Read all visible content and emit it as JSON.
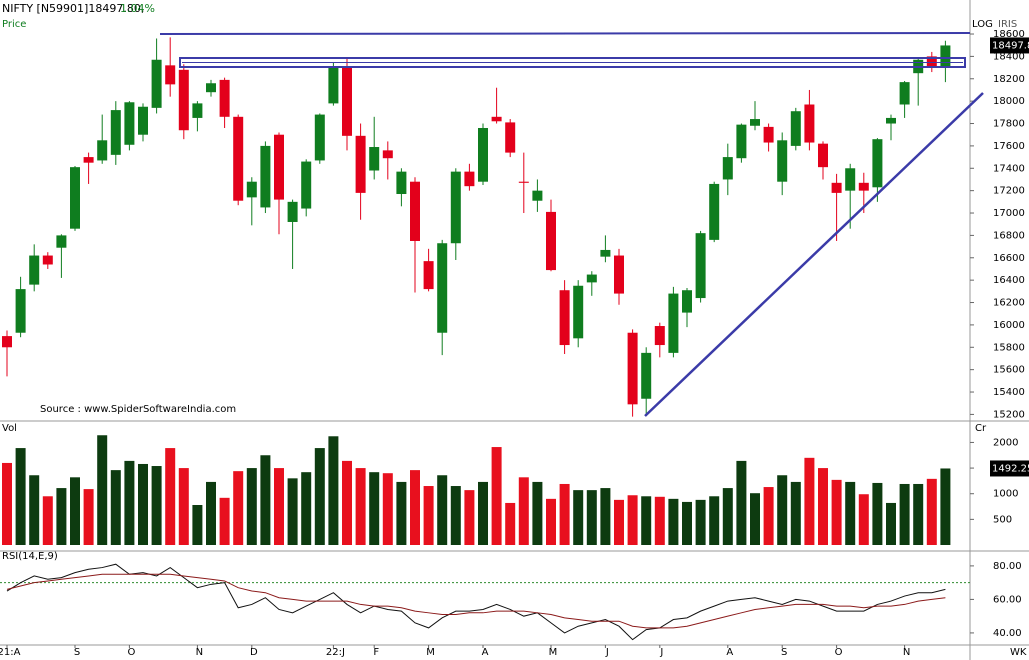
{
  "chart_data": [
    {
      "type": "candlestick",
      "title": "NIFTY [N59901]18497.80,",
      "change": "1.04%",
      "panel_label": "Price",
      "scale_labels": [
        "LOG",
        "IRIS"
      ],
      "source": "Source : www.SpiderSoftwareIndia.com",
      "up_color": "#0f7d1f",
      "down_color": "#e3001b",
      "open": [
        15900,
        15930,
        16360,
        16620,
        16690,
        16860,
        17500,
        17470,
        17520,
        17610,
        17700,
        17940,
        18320,
        18280,
        17850,
        18080,
        18190,
        17860,
        17140,
        17050,
        17700,
        16920,
        17040,
        17470,
        17980,
        18300,
        17690,
        17380,
        17560,
        17170,
        17280,
        16570,
        15930,
        16730,
        17370,
        17280,
        17860,
        17810,
        17280,
        17110,
        17010,
        16310,
        15880,
        16380,
        16610,
        16620,
        15930,
        15340,
        15990,
        15750,
        16110,
        16240,
        16760,
        17300,
        17490,
        17780,
        17770,
        17280,
        17600,
        17970,
        17620,
        17270,
        17200,
        17270,
        17230,
        17800,
        17970,
        18250,
        18400,
        18300
      ],
      "high": [
        15950,
        16430,
        16720,
        16650,
        16810,
        17420,
        17540,
        17880,
        18000,
        18000,
        17980,
        18560,
        18570,
        18330,
        18000,
        18190,
        18210,
        17880,
        17320,
        17640,
        17720,
        17120,
        17480,
        17890,
        18350,
        18390,
        17800,
        17860,
        17640,
        17400,
        17320,
        16680,
        16760,
        17400,
        17440,
        17800,
        18120,
        17840,
        17540,
        17300,
        17120,
        16400,
        16400,
        16480,
        16800,
        16680,
        15960,
        15800,
        16020,
        16340,
        16330,
        16840,
        17280,
        17620,
        17800,
        18000,
        17800,
        17720,
        17940,
        18100,
        17640,
        17350,
        17440,
        17360,
        17670,
        17880,
        18180,
        18380,
        18440,
        18540
      ],
      "low": [
        15540,
        15890,
        16300,
        16500,
        16420,
        16840,
        17260,
        17440,
        17430,
        17560,
        17640,
        17890,
        18040,
        17660,
        17730,
        18040,
        17760,
        17070,
        16890,
        17000,
        16810,
        16500,
        16970,
        17440,
        17960,
        17560,
        16940,
        17300,
        17300,
        17060,
        16290,
        16300,
        15730,
        16580,
        17200,
        17250,
        17800,
        17500,
        17000,
        17010,
        16480,
        15740,
        15800,
        16260,
        16560,
        16180,
        15180,
        15190,
        15710,
        15710,
        15980,
        16200,
        16740,
        17160,
        17450,
        17740,
        17550,
        17160,
        17560,
        17560,
        17300,
        16750,
        16860,
        17000,
        17100,
        17650,
        17850,
        17960,
        18260,
        18170
      ],
      "close": [
        15800,
        16320,
        16620,
        16540,
        16800,
        17410,
        17450,
        17650,
        17920,
        17990,
        17950,
        18370,
        18150,
        17740,
        17980,
        18160,
        17860,
        17110,
        17280,
        17600,
        17120,
        17100,
        17460,
        17880,
        18300,
        17690,
        17180,
        17590,
        17490,
        17370,
        16750,
        16320,
        16730,
        17370,
        17240,
        17760,
        17820,
        17540,
        17270,
        17200,
        16490,
        15820,
        16350,
        16450,
        16670,
        16280,
        15290,
        15750,
        15820,
        16280,
        16310,
        16820,
        17260,
        17500,
        17790,
        17840,
        17630,
        17650,
        17910,
        17630,
        17410,
        17180,
        17400,
        17200,
        17660,
        17850,
        18170,
        18370,
        18310,
        18497.8
      ],
      "ylim": [
        15150,
        18770
      ],
      "yticks": [
        15200,
        15400,
        15600,
        15800,
        16000,
        16200,
        16400,
        16600,
        16800,
        17000,
        17200,
        17400,
        17600,
        17800,
        18000,
        18200,
        18400,
        18600
      ]
    },
    {
      "type": "bar",
      "panel_label": "Vol",
      "unit_label": "Cr",
      "up_color": "#0d3b10",
      "down_color": "#e8101e",
      "values": [
        1600,
        1890,
        1360,
        950,
        1110,
        1320,
        1090,
        2140,
        1460,
        1640,
        1580,
        1540,
        1890,
        1500,
        780,
        1230,
        920,
        1440,
        1500,
        1750,
        1500,
        1300,
        1420,
        1890,
        2120,
        1640,
        1500,
        1420,
        1400,
        1230,
        1460,
        1150,
        1360,
        1150,
        1070,
        1230,
        1910,
        820,
        1320,
        1230,
        900,
        1190,
        1070,
        1070,
        1110,
        880,
        970,
        950,
        940,
        900,
        840,
        880,
        950,
        1110,
        1640,
        1010,
        1130,
        1360,
        1230,
        1700,
        1500,
        1270,
        1230,
        990,
        1210,
        820,
        1190,
        1190,
        1290,
        1492.25
      ],
      "ylim": [
        0,
        2340
      ],
      "yticks": [
        500,
        1000,
        1500,
        2000
      ]
    },
    {
      "type": "line",
      "panel_label": "RSI(14,E,9)",
      "x_label": "WK",
      "categories": [
        "21:A",
        null,
        null,
        null,
        null,
        "S",
        null,
        null,
        null,
        "O",
        null,
        null,
        null,
        null,
        "N",
        null,
        null,
        null,
        "D",
        null,
        null,
        null,
        null,
        null,
        "22:J",
        null,
        null,
        "F",
        null,
        null,
        null,
        "M",
        null,
        null,
        null,
        "A",
        null,
        null,
        null,
        null,
        "M",
        null,
        null,
        null,
        "J",
        null,
        null,
        null,
        "J",
        null,
        null,
        null,
        null,
        "A",
        null,
        null,
        null,
        "S",
        null,
        null,
        null,
        "O",
        null,
        null,
        null,
        null,
        "N",
        null,
        null,
        null
      ],
      "series": [
        {
          "color": "#111111",
          "values": [
            65,
            70,
            74,
            72,
            73,
            76,
            78,
            79,
            81,
            75,
            76,
            74,
            79,
            73,
            67,
            69,
            70,
            55,
            57,
            61,
            54,
            52,
            56,
            60,
            64,
            57,
            52,
            56,
            54,
            53,
            46,
            43,
            49,
            53,
            53,
            54,
            57,
            54,
            50,
            52,
            46,
            40,
            44,
            46,
            48,
            44,
            36,
            42,
            43,
            48,
            49,
            53,
            56,
            59,
            60,
            61,
            59,
            57,
            60,
            59,
            56,
            53,
            53,
            53,
            57,
            59,
            62,
            64,
            64,
            66
          ]
        },
        {
          "color": "#8b1a1a",
          "values": [
            66,
            68,
            70,
            71,
            72,
            73,
            74,
            75,
            75,
            75,
            75,
            75,
            75,
            74,
            73,
            72,
            71,
            67,
            65,
            64,
            61,
            60,
            59,
            59,
            59,
            59,
            57,
            56,
            56,
            55,
            53,
            52,
            51,
            51,
            52,
            52,
            53,
            53,
            53,
            52,
            51,
            49,
            48,
            47,
            47,
            47,
            44,
            43,
            43,
            43,
            44,
            46,
            48,
            50,
            52,
            54,
            55,
            56,
            57,
            57,
            57,
            56,
            56,
            55,
            56,
            56,
            57,
            59,
            60,
            61
          ]
        }
      ],
      "level": 70,
      "level_color": "#2e8b2e",
      "ylim": [
        31,
        86.5
      ],
      "yticks": [
        {
          "value": 40,
          "label": "40.00"
        },
        {
          "value": 60,
          "label": "60.00"
        },
        {
          "value": 80,
          "label": "80.00"
        }
      ]
    }
  ]
}
